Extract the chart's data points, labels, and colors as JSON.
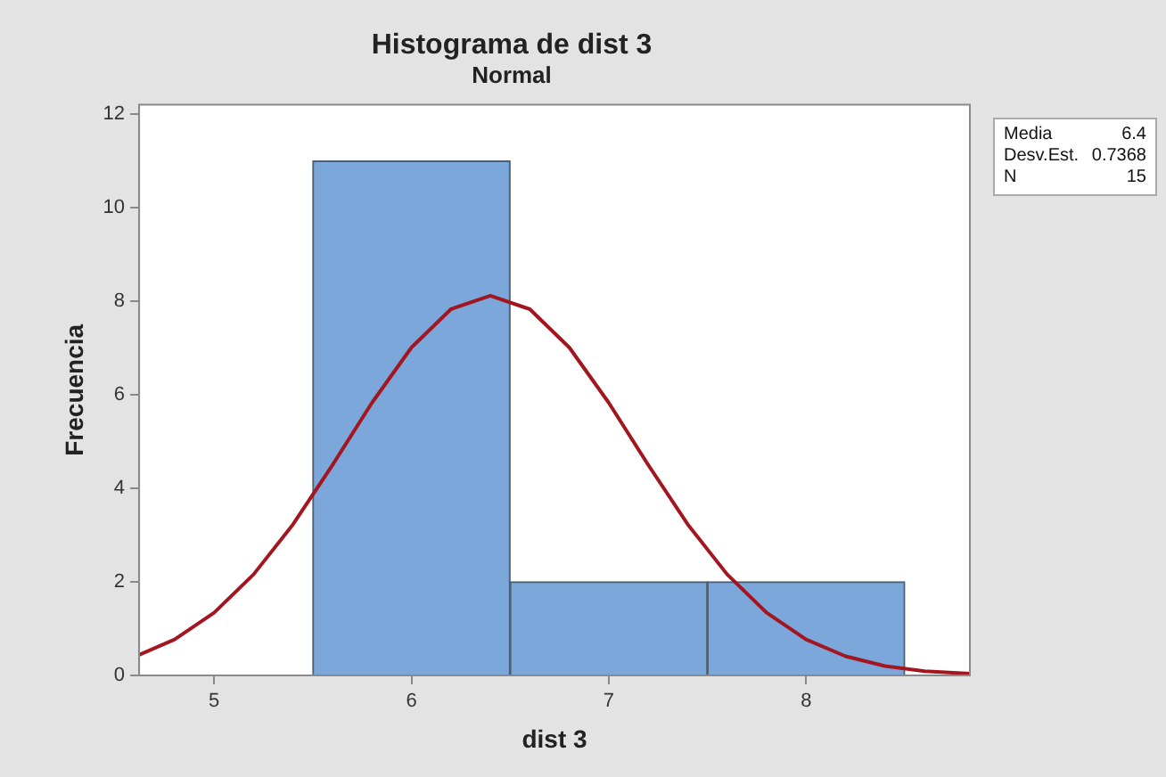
{
  "chart_data": {
    "type": "histogram",
    "title": "Histograma de dist 3",
    "subtitle": "Normal",
    "xlabel": "dist 3",
    "ylabel": "Frecuencia",
    "bins": [
      5.5,
      6.5,
      7.5,
      8.5
    ],
    "values": [
      11,
      2,
      2
    ],
    "color": "#7ba7da",
    "series": [
      {
        "type": "line",
        "color": "#a3161f",
        "x": [
          4.62,
          4.8,
          5.0,
          5.2,
          5.4,
          5.6,
          5.8,
          6.0,
          6.2,
          6.4,
          6.6,
          6.8,
          7.0,
          7.2,
          7.4,
          7.6,
          7.8,
          8.0,
          8.2,
          8.4,
          8.6,
          8.83
        ],
        "values": [
          0.44,
          0.77,
          1.34,
          2.16,
          3.23,
          4.5,
          5.83,
          7.01,
          7.83,
          8.12,
          7.83,
          7.01,
          5.83,
          4.5,
          3.23,
          2.16,
          1.34,
          0.77,
          0.41,
          0.2,
          0.09,
          0.04
        ]
      }
    ],
    "xlim": [
      4.62,
      8.83
    ],
    "xticks": [
      5,
      6,
      7,
      8
    ],
    "ylim": [
      0,
      12.2
    ],
    "yticks": [
      0,
      2,
      4,
      6,
      8,
      10,
      12
    ],
    "grid": false,
    "legend": false,
    "marker": "none",
    "annotations": [
      "Media 6.4",
      "Desv.Est. 0.7368",
      "N 15"
    ]
  }
}
